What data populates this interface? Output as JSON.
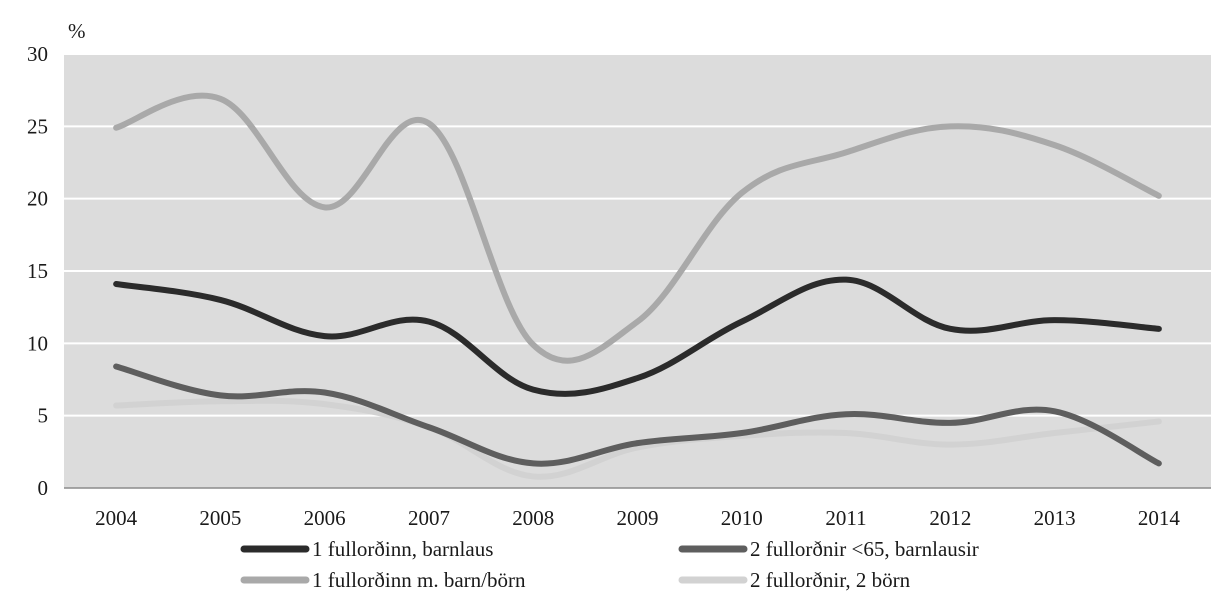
{
  "chart_data": {
    "type": "line",
    "unit_label": "%",
    "x": [
      "2004",
      "2005",
      "2006",
      "2007",
      "2008",
      "2009",
      "2010",
      "2011",
      "2012",
      "2013",
      "2014"
    ],
    "ylim": [
      0,
      30
    ],
    "y_ticks": [
      "0",
      "5",
      "10",
      "15",
      "20",
      "25",
      "30"
    ],
    "grid": true,
    "legend_position": "bottom",
    "plot_background": "#dcdcdc",
    "series": [
      {
        "name": "1 fullorðinn, barnlaus",
        "color": "#2b2b2b",
        "values": [
          14.1,
          13.0,
          10.5,
          11.5,
          6.8,
          7.6,
          11.5,
          14.4,
          11.0,
          11.6,
          11.0
        ]
      },
      {
        "name": "2 fullorðnir <65, barnlausir",
        "color": "#5e5e5e",
        "values": [
          8.4,
          6.4,
          6.6,
          4.2,
          1.7,
          3.1,
          3.8,
          5.1,
          4.5,
          5.3,
          1.7
        ]
      },
      {
        "name": "1 fullorðinn m. barn/börn",
        "color": "#a9a9a9",
        "values": [
          24.9,
          26.9,
          19.4,
          25.2,
          9.9,
          11.5,
          20.4,
          23.2,
          25.0,
          23.7,
          20.2
        ]
      },
      {
        "name": "2 fullorðnir, 2 börn",
        "color": "#d2d2d2",
        "values": [
          5.7,
          6.0,
          5.8,
          4.2,
          0.8,
          2.8,
          3.6,
          3.8,
          3.0,
          3.8,
          4.6
        ]
      }
    ]
  }
}
